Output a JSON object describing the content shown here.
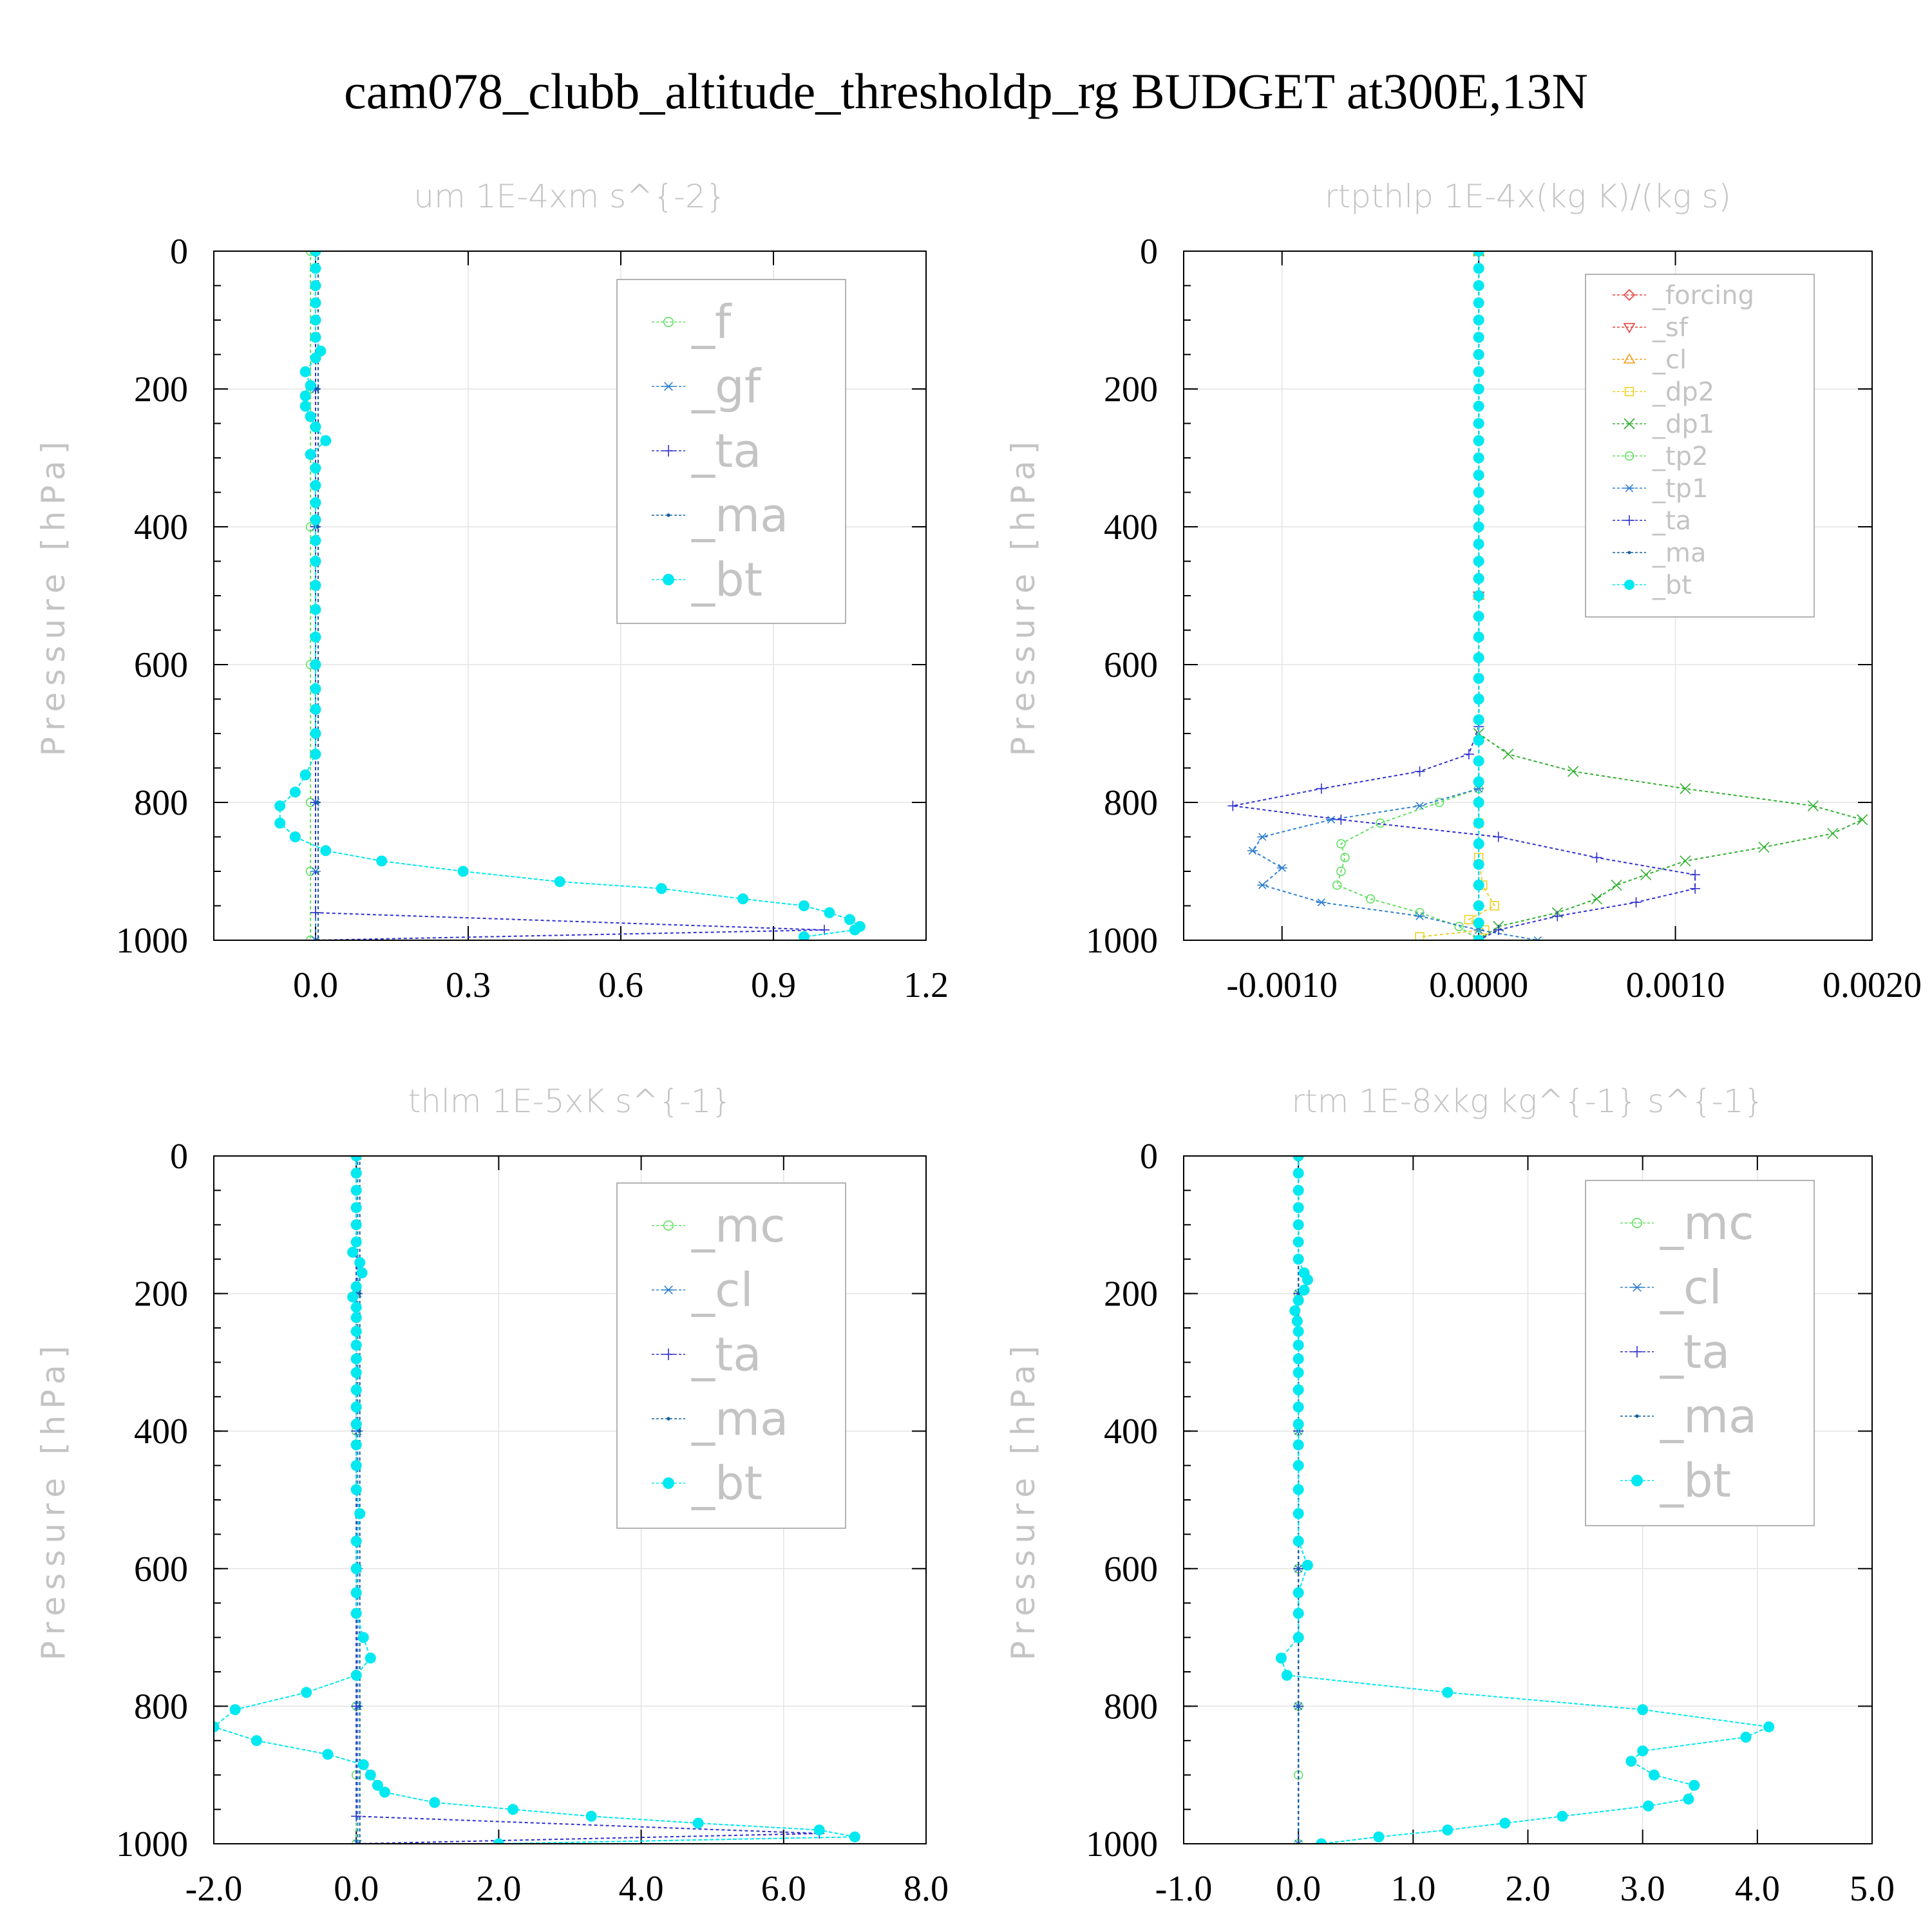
{
  "title": "cam078_clubb_altitude_thresholdp_rg  BUDGET at300E,13N",
  "colors": {
    "forcing": "#e8403c",
    "sf": "#e8403c",
    "cl_orange": "#f0a020",
    "dp2": "#f0d020",
    "dp1": "#30b030",
    "mc": "#60e060",
    "f": "#60e060",
    "tp2": "#60e060",
    "gf": "#3080d0",
    "cl": "#3080d0",
    "tp1": "#3080d0",
    "ta": "#3030d0",
    "ma": "#1060a0",
    "bt": "#00e8f0"
  },
  "chart_data": [
    {
      "type": "line",
      "title": "um  1E-4xm s^{-2}",
      "ylabel": "Pressure [hPa]",
      "xlim": [
        -0.2,
        1.2
      ],
      "ylim": [
        1000,
        0
      ],
      "xticks": [
        "0.0",
        "0.3",
        "0.6",
        "0.9",
        "1.2"
      ],
      "yticks": [
        "0",
        "200",
        "400",
        "600",
        "800",
        "1000"
      ],
      "legend_position": "top-right",
      "legend_font": "large",
      "series": [
        {
          "name": "_f",
          "marker": "circle",
          "color": "#60e060",
          "y": [
            0,
            200,
            400,
            600,
            800,
            900,
            1000
          ],
          "x": [
            -0.01,
            -0.01,
            -0.01,
            -0.01,
            -0.01,
            -0.01,
            -0.01
          ]
        },
        {
          "name": "_gf",
          "marker": "asterisk",
          "color": "#3080d0",
          "y": [
            0,
            200,
            400,
            600,
            800,
            900,
            1000
          ],
          "x": [
            0.0,
            0.0,
            0.0,
            0.0,
            0.0,
            0.0,
            0.0
          ]
        },
        {
          "name": "_ta",
          "marker": "plus",
          "color": "#3030d0",
          "y": [
            0,
            200,
            400,
            600,
            800,
            960,
            985,
            1000
          ],
          "x": [
            0.0,
            0.0,
            0.0,
            0.0,
            0.0,
            0.0,
            1.0,
            0.0
          ]
        },
        {
          "name": "_ma",
          "marker": "dot",
          "color": "#1060a0",
          "y": [
            0,
            200,
            400,
            600,
            800,
            1000
          ],
          "x": [
            0.005,
            0.005,
            0.005,
            0.005,
            0.005,
            0.005
          ]
        },
        {
          "name": "_bt",
          "marker": "filled-circle",
          "color": "#00e8f0",
          "y": [
            0,
            25,
            50,
            75,
            100,
            125,
            145,
            155,
            175,
            195,
            210,
            225,
            240,
            255,
            275,
            295,
            315,
            340,
            365,
            390,
            420,
            450,
            485,
            520,
            560,
            600,
            635,
            665,
            700,
            730,
            760,
            785,
            805,
            830,
            850,
            870,
            885,
            900,
            915,
            925,
            940,
            950,
            960,
            970,
            980,
            985,
            995
          ],
          "x": [
            0.0,
            0.0,
            0.0,
            0.0,
            0.0,
            0.0,
            0.01,
            0.0,
            -0.02,
            -0.01,
            -0.02,
            -0.02,
            -0.01,
            0.0,
            0.02,
            -0.01,
            0.0,
            0.0,
            0.0,
            0.0,
            0.0,
            0.0,
            0.0,
            0.0,
            0.0,
            0.0,
            0.0,
            0.0,
            0.0,
            0.0,
            -0.02,
            -0.04,
            -0.07,
            -0.07,
            -0.04,
            0.02,
            0.13,
            0.29,
            0.48,
            0.68,
            0.84,
            0.96,
            1.01,
            1.05,
            1.07,
            1.06,
            0.96
          ]
        }
      ]
    },
    {
      "type": "line",
      "title": "rtpthlp  1E-4x(kg K)/(kg s)",
      "ylabel": "Pressure [hPa]",
      "xlim": [
        -0.0015,
        0.002
      ],
      "ylim": [
        1000,
        0
      ],
      "xticks": [
        "-0.0010",
        "0.0000",
        "0.0010",
        "0.0020"
      ],
      "yticks": [
        "0",
        "200",
        "400",
        "600",
        "800",
        "1000"
      ],
      "legend_position": "top-right",
      "legend_font": "small",
      "series": [
        {
          "name": "_forcing",
          "marker": "diamond",
          "color": "#e8403c",
          "y": [
            0,
            500,
            1000
          ],
          "x": [
            0.0,
            0.0,
            0.0
          ]
        },
        {
          "name": "_sf",
          "marker": "triangle-down",
          "color": "#e8403c",
          "y": [
            0,
            500,
            1000
          ],
          "x": [
            0.0,
            0.0,
            0.0
          ]
        },
        {
          "name": "_cl",
          "marker": "triangle-up",
          "color": "#f0a020",
          "y": [
            0,
            500,
            1000
          ],
          "x": [
            0.0,
            0.0,
            0.0
          ]
        },
        {
          "name": "_dp2",
          "marker": "square",
          "color": "#f0d020",
          "y": [
            0,
            830,
            880,
            920,
            950,
            970,
            985,
            995
          ],
          "x": [
            0.0,
            0.0,
            0.0,
            2e-05,
            8e-05,
            -5e-05,
            3e-05,
            -0.0003
          ]
        },
        {
          "name": "_dp1",
          "marker": "x",
          "color": "#30b030",
          "y": [
            0,
            700,
            730,
            755,
            780,
            805,
            825,
            845,
            865,
            885,
            905,
            920,
            940,
            960,
            980,
            1000
          ],
          "x": [
            0.0,
            0.0,
            0.00015,
            0.00048,
            0.00105,
            0.0017,
            0.00195,
            0.0018,
            0.00145,
            0.00105,
            0.00085,
            0.0007,
            0.0006,
            0.0004,
            0.0001,
            0.0
          ]
        },
        {
          "name": "_tp2",
          "marker": "circle",
          "color": "#60e060",
          "y": [
            0,
            780,
            800,
            830,
            860,
            880,
            900,
            920,
            940,
            960,
            980,
            1000
          ],
          "x": [
            0.0,
            0.0,
            -0.0002,
            -0.0005,
            -0.0007,
            -0.00068,
            -0.0007,
            -0.00072,
            -0.00055,
            -0.0003,
            -0.0001,
            0.0
          ]
        },
        {
          "name": "_tp1",
          "marker": "asterisk",
          "color": "#3080d0",
          "y": [
            0,
            780,
            805,
            825,
            850,
            870,
            895,
            920,
            945,
            965,
            985,
            1000
          ],
          "x": [
            0.0,
            0.0,
            -0.0003,
            -0.00075,
            -0.0011,
            -0.00115,
            -0.001,
            -0.0011,
            -0.0008,
            -0.0003,
            0.0,
            0.0003
          ]
        },
        {
          "name": "_ta",
          "marker": "plus",
          "color": "#3030d0",
          "y": [
            0,
            690,
            730,
            755,
            780,
            805,
            825,
            850,
            880,
            905,
            925,
            945,
            965,
            985,
            1000
          ],
          "x": [
            0.0,
            0.0,
            -5e-05,
            -0.0003,
            -0.0008,
            -0.00125,
            -0.0007,
            0.0001,
            0.0006,
            0.0011,
            0.0011,
            0.0008,
            0.0004,
            0.0001,
            0.0
          ]
        },
        {
          "name": "_ma",
          "marker": "dot",
          "color": "#1060a0",
          "y": [
            0,
            500,
            1000
          ],
          "x": [
            0.0,
            0.0,
            0.0
          ]
        },
        {
          "name": "_bt",
          "marker": "filled-circle",
          "color": "#00e8f0",
          "y": [
            0,
            25,
            50,
            75,
            100,
            125,
            150,
            175,
            200,
            225,
            250,
            275,
            300,
            325,
            350,
            375,
            400,
            425,
            450,
            475,
            500,
            530,
            560,
            590,
            620,
            650,
            680,
            710,
            740,
            770,
            800,
            830,
            860,
            890,
            920,
            950,
            975,
            1000
          ],
          "x": [
            0,
            0,
            0,
            0,
            0,
            0,
            0,
            0,
            0,
            0,
            0,
            0,
            0,
            0,
            0,
            0,
            0,
            0,
            0,
            0,
            0,
            0,
            0,
            0,
            0,
            0,
            0,
            0,
            0,
            0,
            0,
            0,
            0,
            0,
            0,
            0,
            0,
            0
          ]
        }
      ]
    },
    {
      "type": "line",
      "title": "thlm  1E-5xK s^{-1}",
      "ylabel": "Pressure [hPa]",
      "xlim": [
        -2.0,
        8.0
      ],
      "ylim": [
        1000,
        0
      ],
      "xticks": [
        "-2.0",
        "0.0",
        "2.0",
        "4.0",
        "6.0",
        "8.0"
      ],
      "yticks": [
        "0",
        "200",
        "400",
        "600",
        "800",
        "1000"
      ],
      "legend_position": "top-right",
      "legend_font": "large",
      "series": [
        {
          "name": "_mc",
          "marker": "circle",
          "color": "#60e060",
          "y": [
            0,
            200,
            400,
            600,
            800,
            900,
            1000
          ],
          "x": [
            0.0,
            0.0,
            0.0,
            0.0,
            0.0,
            0.0,
            0.0
          ]
        },
        {
          "name": "_cl",
          "marker": "asterisk",
          "color": "#3080d0",
          "y": [
            0,
            200,
            400,
            600,
            800,
            1000
          ],
          "x": [
            0.02,
            0.02,
            0.02,
            0.02,
            0.02,
            0.02
          ]
        },
        {
          "name": "_ta",
          "marker": "plus",
          "color": "#3030d0",
          "y": [
            0,
            200,
            400,
            600,
            800,
            960,
            985,
            1000
          ],
          "x": [
            0.0,
            0.0,
            0.0,
            0.0,
            0.0,
            0.0,
            6.5,
            0.0
          ]
        },
        {
          "name": "_ma",
          "marker": "dot",
          "color": "#1060a0",
          "y": [
            0,
            200,
            400,
            600,
            800,
            1000
          ],
          "x": [
            0.05,
            0.05,
            0.05,
            0.05,
            0.05,
            0.05
          ]
        },
        {
          "name": "_bt",
          "marker": "filled-circle",
          "color": "#00e8f0",
          "y": [
            0,
            25,
            50,
            75,
            100,
            125,
            140,
            155,
            170,
            190,
            205,
            220,
            235,
            255,
            275,
            295,
            315,
            340,
            365,
            390,
            420,
            450,
            485,
            520,
            560,
            600,
            635,
            665,
            700,
            730,
            755,
            780,
            805,
            830,
            850,
            870,
            885,
            900,
            915,
            925,
            940,
            950,
            960,
            970,
            980,
            990,
            1000
          ],
          "x": [
            0.0,
            0.0,
            0.0,
            0.0,
            0.0,
            0.0,
            -0.05,
            0.05,
            0.08,
            0.0,
            -0.05,
            0.0,
            0.0,
            0.0,
            0.0,
            0.0,
            0.0,
            0.0,
            0.0,
            0.0,
            0.0,
            0.0,
            0.0,
            0.05,
            0.0,
            0.0,
            0.0,
            0.0,
            0.1,
            0.2,
            0.0,
            -0.7,
            -1.7,
            -2.0,
            -1.4,
            -0.4,
            0.1,
            0.2,
            0.3,
            0.4,
            1.1,
            2.2,
            3.3,
            4.8,
            6.5,
            7.0,
            2.0
          ]
        }
      ]
    },
    {
      "type": "line",
      "title": "rtm  1E-8xkg kg^{-1} s^{-1}",
      "ylabel": "Pressure [hPa]",
      "xlim": [
        -1.0,
        5.0
      ],
      "ylim": [
        1000,
        0
      ],
      "xticks": [
        "-1.0",
        "0.0",
        "1.0",
        "2.0",
        "3.0",
        "4.0",
        "5.0"
      ],
      "yticks": [
        "0",
        "200",
        "400",
        "600",
        "800",
        "1000"
      ],
      "legend_position": "top-right",
      "legend_font": "large",
      "series": [
        {
          "name": "_mc",
          "marker": "circle",
          "color": "#60e060",
          "y": [
            0,
            200,
            400,
            600,
            800,
            900,
            1000
          ],
          "x": [
            0.0,
            0.0,
            0.0,
            0.0,
            0.0,
            0.0,
            0.0
          ]
        },
        {
          "name": "_cl",
          "marker": "asterisk",
          "color": "#3080d0",
          "y": [
            0,
            200,
            400,
            600,
            800,
            1000
          ],
          "x": [
            0.0,
            0.0,
            0.0,
            0.0,
            0.0,
            0.0
          ]
        },
        {
          "name": "_ta",
          "marker": "plus",
          "color": "#3030d0",
          "y": [
            0,
            200,
            400,
            600,
            800,
            1000
          ],
          "x": [
            0.0,
            0.0,
            0.0,
            0.0,
            0.0,
            0.0
          ]
        },
        {
          "name": "_ma",
          "marker": "dot",
          "color": "#1060a0",
          "y": [
            0,
            200,
            400,
            600,
            800,
            1000
          ],
          "x": [
            0.0,
            0.0,
            0.0,
            0.0,
            0.0,
            0.0
          ]
        },
        {
          "name": "_bt",
          "marker": "filled-circle",
          "color": "#00e8f0",
          "y": [
            0,
            25,
            50,
            75,
            100,
            125,
            150,
            170,
            180,
            195,
            210,
            225,
            240,
            255,
            275,
            295,
            315,
            340,
            365,
            390,
            420,
            450,
            485,
            520,
            560,
            595,
            635,
            665,
            700,
            730,
            755,
            780,
            805,
            830,
            845,
            865,
            880,
            900,
            915,
            935,
            945,
            960,
            970,
            980,
            990,
            1000
          ],
          "x": [
            0.0,
            0.0,
            0.0,
            0.0,
            0.0,
            0.0,
            0.0,
            0.05,
            0.08,
            0.05,
            0.0,
            -0.03,
            -0.01,
            0.0,
            0.0,
            0.0,
            0.0,
            0.0,
            0.0,
            0.0,
            0.0,
            0.0,
            0.0,
            0.0,
            0.0,
            0.08,
            0.0,
            0.0,
            0.0,
            -0.15,
            -0.1,
            1.3,
            3.0,
            4.1,
            3.9,
            3.0,
            2.9,
            3.1,
            3.45,
            3.4,
            3.05,
            2.3,
            1.8,
            1.3,
            0.7,
            0.2
          ]
        }
      ]
    }
  ]
}
